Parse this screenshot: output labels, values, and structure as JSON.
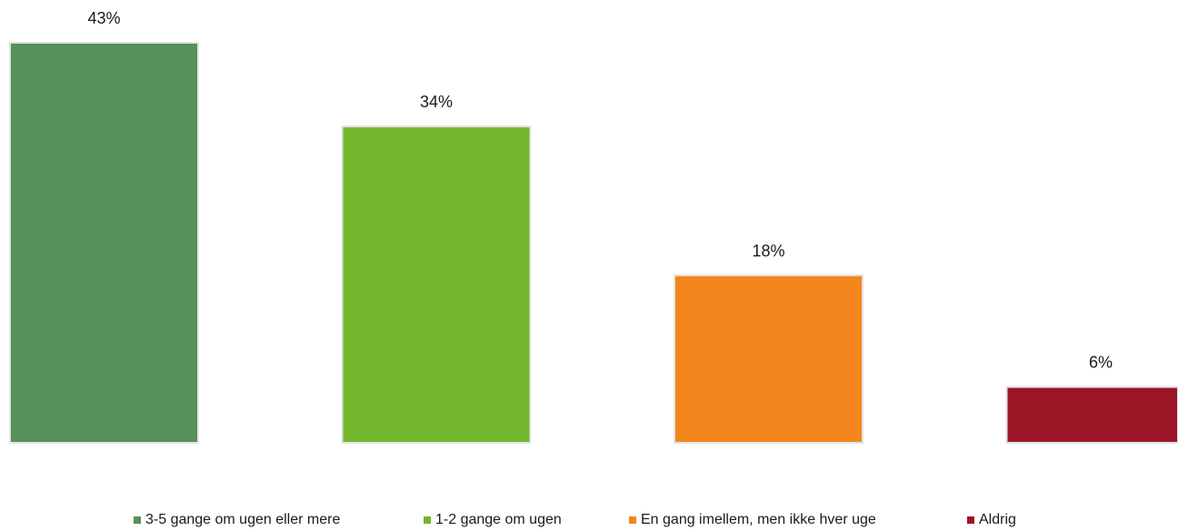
{
  "chart_data": {
    "type": "bar",
    "categories": [
      "3-5 gange om ugen eller mere",
      "1-2 gange om ugen",
      "En gang imellem, men ikke hver uge",
      "Aldrig"
    ],
    "values": [
      43,
      34,
      18,
      6
    ],
    "value_labels": [
      "43%",
      "34%",
      "18%",
      "6%"
    ],
    "colors": [
      "#559159",
      "#72b72e",
      "#f2861c",
      "#9c1627"
    ],
    "title": "",
    "xlabel": "",
    "ylabel": "",
    "ylim": [
      0,
      43
    ],
    "grid": false,
    "legend_position": "bottom"
  },
  "legend": {
    "items": [
      {
        "label": "3-5 gange om ugen eller mere",
        "color": "#559159"
      },
      {
        "label": "1-2 gange om ugen",
        "color": "#72b72e"
      },
      {
        "label": "En gang imellem, men ikke hver uge",
        "color": "#f2861c"
      },
      {
        "label": "Aldrig",
        "color": "#9c1627"
      }
    ]
  }
}
